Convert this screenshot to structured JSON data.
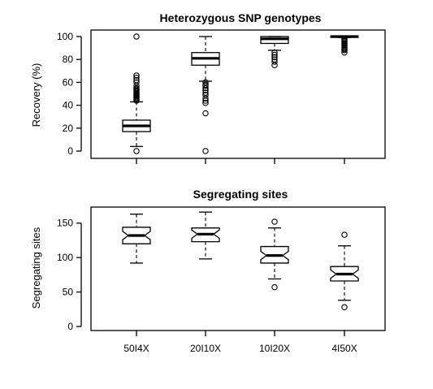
{
  "chart_data": [
    {
      "type": "box",
      "title": "Heterozygous SNP genotypes",
      "xlabel": "",
      "ylabel": "Recovery (%)",
      "ylim": [
        0,
        100
      ],
      "yticks": [
        0,
        20,
        40,
        60,
        80,
        100
      ],
      "categories": [
        "50I4X",
        "20I10X",
        "10I20X",
        "4I50X"
      ],
      "show_xtick_labels": false,
      "notched": false,
      "boxes": [
        {
          "category": "50I4X",
          "low": 4,
          "q1": 17,
          "median": 22,
          "q3": 27,
          "high": 43,
          "outliers": [
            0,
            44,
            45,
            46,
            47,
            48,
            49,
            50,
            51,
            52,
            53,
            54,
            55,
            57,
            60,
            62,
            64,
            66,
            100
          ]
        },
        {
          "category": "20I10X",
          "low": 61,
          "q1": 75,
          "median": 81,
          "q3": 86,
          "high": 100,
          "outliers": [
            0,
            33,
            42,
            44,
            46,
            49,
            51,
            53,
            55,
            57,
            58,
            60
          ]
        },
        {
          "category": "10I20X",
          "low": 88,
          "q1": 94,
          "median": 98,
          "q3": 100,
          "high": 100,
          "outliers": [
            75,
            78,
            80,
            82,
            84,
            86
          ]
        },
        {
          "category": "4I50X",
          "low": 99,
          "q1": 99.5,
          "median": 100,
          "q3": 100,
          "high": 100,
          "outliers": [
            86,
            88,
            89,
            90,
            91,
            92,
            93,
            94,
            95,
            96,
            97,
            98
          ]
        }
      ]
    },
    {
      "type": "box",
      "title": "Segregating sites",
      "xlabel": "",
      "ylabel": "Segregating sites",
      "ylim": [
        0,
        165
      ],
      "yticks": [
        0,
        50,
        100,
        150
      ],
      "categories": [
        "50I4X",
        "20I10X",
        "10I20X",
        "4I50X"
      ],
      "show_xtick_labels": true,
      "notched": true,
      "boxes": [
        {
          "category": "50I4X",
          "low": 92,
          "q1": 120,
          "median": 132,
          "q3": 144,
          "high": 163,
          "notch": 6,
          "outliers": []
        },
        {
          "category": "20I10X",
          "low": 98,
          "q1": 123,
          "median": 134,
          "q3": 143,
          "high": 166,
          "notch": 6,
          "outliers": []
        },
        {
          "category": "10I20X",
          "low": 69,
          "q1": 92,
          "median": 103,
          "q3": 116,
          "high": 143,
          "notch": 6,
          "outliers": [
            57,
            152
          ]
        },
        {
          "category": "4I50X",
          "low": 38,
          "q1": 66,
          "median": 76,
          "q3": 87,
          "high": 117,
          "notch": 6,
          "outliers": [
            28,
            133
          ]
        }
      ]
    }
  ]
}
